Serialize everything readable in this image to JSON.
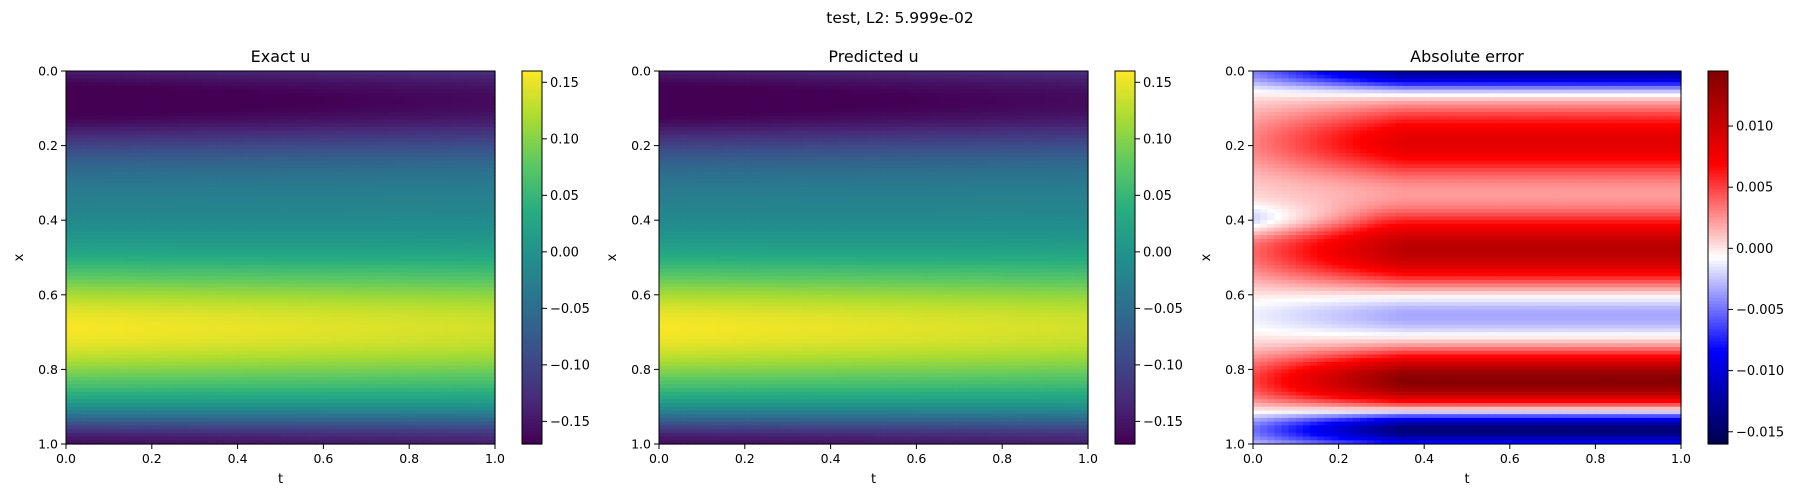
{
  "figure": {
    "suptitle": "test, L2: 5.999e-02"
  },
  "chart_data": [
    {
      "type": "heatmap",
      "title": "Exact u",
      "xlabel": "t",
      "ylabel": "x",
      "xlim": [
        0.0,
        1.0
      ],
      "ylim": [
        1.0,
        0.0
      ],
      "xticks": [
        "0.0",
        "0.2",
        "0.4",
        "0.6",
        "0.8",
        "1.0"
      ],
      "yticks": [
        "0.0",
        "0.2",
        "0.4",
        "0.6",
        "0.8",
        "1.0"
      ],
      "colormap": "viridis",
      "clim": [
        -0.17,
        0.16
      ],
      "colorbar_ticks": [
        "0.15",
        "0.10",
        "0.05",
        "0.00",
        "−0.05",
        "−0.10",
        "−0.15"
      ],
      "colorbar_values": [
        0.15,
        0.1,
        0.05,
        0.0,
        -0.05,
        -0.1,
        -0.15
      ]
    },
    {
      "type": "heatmap",
      "title": "Predicted u",
      "xlabel": "t",
      "ylabel": "x",
      "xlim": [
        0.0,
        1.0
      ],
      "ylim": [
        1.0,
        0.0
      ],
      "xticks": [
        "0.0",
        "0.2",
        "0.4",
        "0.6",
        "0.8",
        "1.0"
      ],
      "yticks": [
        "0.0",
        "0.2",
        "0.4",
        "0.6",
        "0.8",
        "1.0"
      ],
      "colormap": "viridis",
      "clim": [
        -0.17,
        0.16
      ],
      "colorbar_ticks": [
        "0.15",
        "0.10",
        "0.05",
        "0.00",
        "−0.05",
        "−0.10",
        "−0.15"
      ],
      "colorbar_values": [
        0.15,
        0.1,
        0.05,
        0.0,
        -0.05,
        -0.1,
        -0.15
      ]
    },
    {
      "type": "heatmap",
      "title": "Absolute error",
      "xlabel": "t",
      "ylabel": "x",
      "xlim": [
        0.0,
        1.0
      ],
      "ylim": [
        1.0,
        0.0
      ],
      "xticks": [
        "0.0",
        "0.2",
        "0.4",
        "0.6",
        "0.8",
        "1.0"
      ],
      "yticks": [
        "0.0",
        "0.2",
        "0.4",
        "0.6",
        "0.8",
        "1.0"
      ],
      "colormap": "seismic",
      "clim": [
        -0.016,
        0.0145
      ],
      "colorbar_ticks": [
        "0.010",
        "0.005",
        "0.000",
        "−0.005",
        "−0.010",
        "−0.015"
      ],
      "colorbar_values": [
        0.01,
        0.005,
        0.0,
        -0.005,
        -0.01,
        -0.015
      ]
    }
  ]
}
